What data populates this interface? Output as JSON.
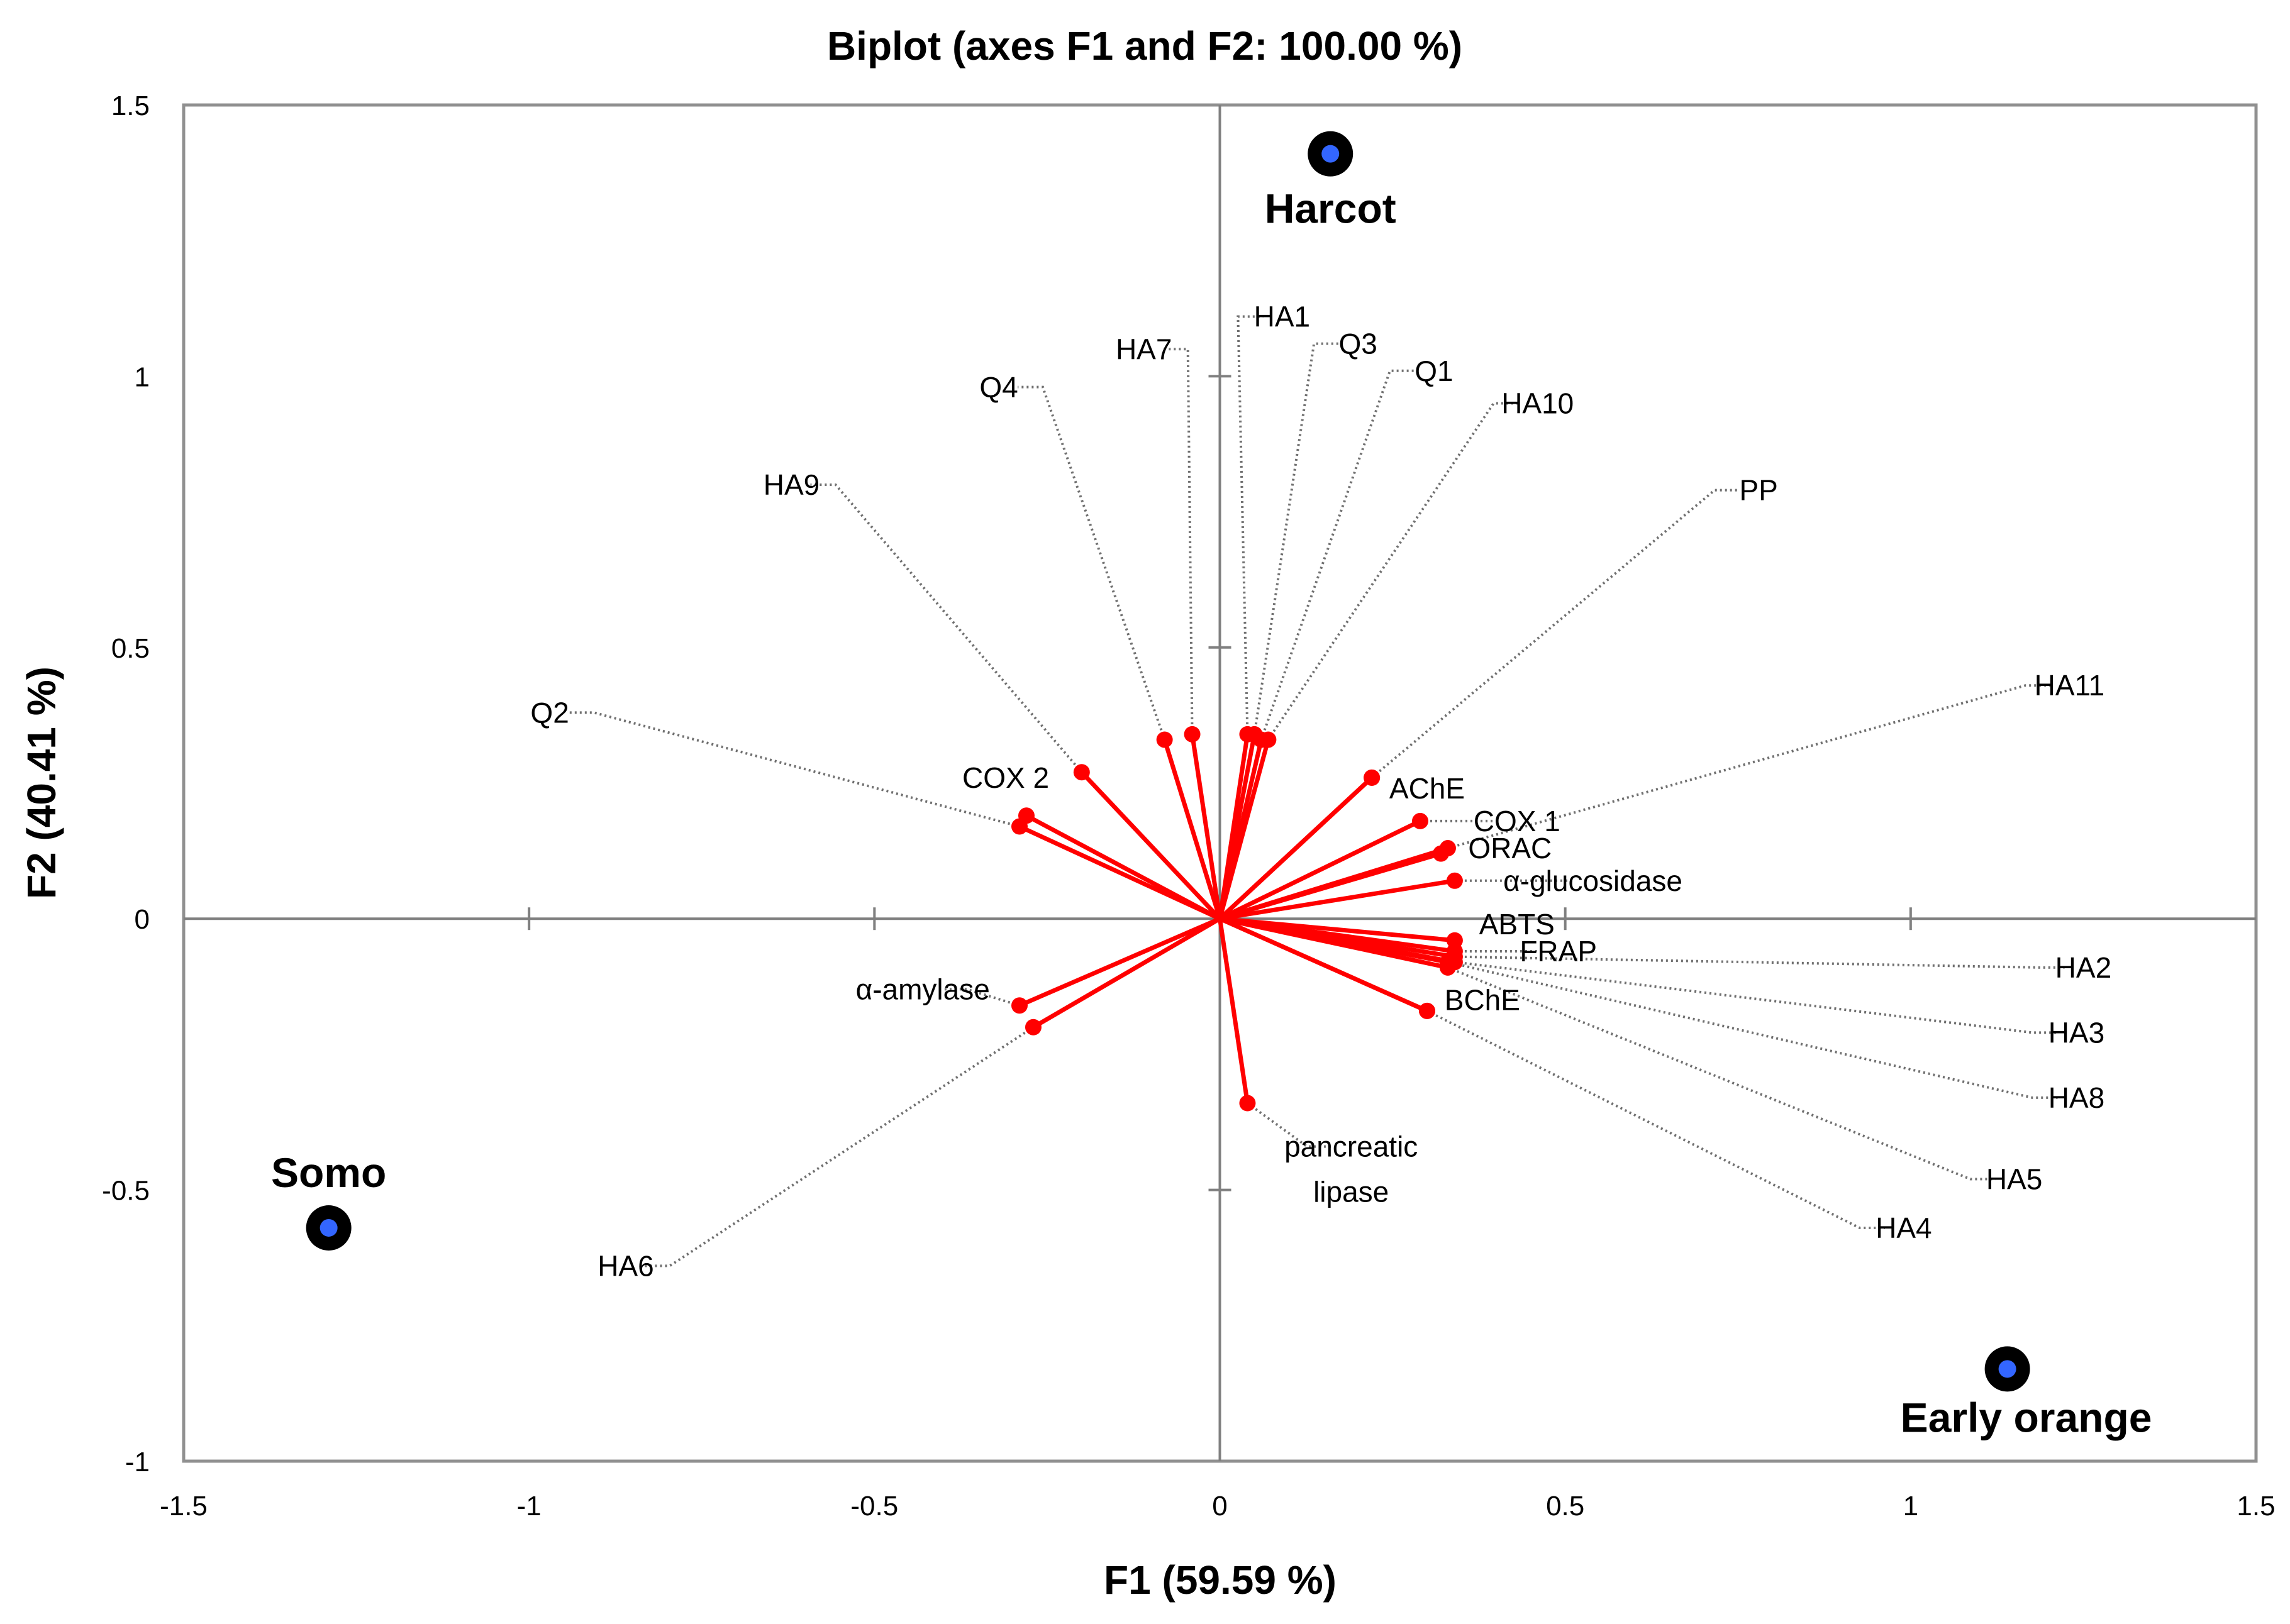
{
  "chart_data": {
    "type": "scatter",
    "subtype": "biplot",
    "title": "Biplot (axes F1 and F2: 100.00 %)",
    "xlabel": "F1 (59.59 %)",
    "ylabel": "F2 (40.41 %)",
    "xlim": [
      -1.5,
      1.5
    ],
    "ylim": [
      -1,
      1.5
    ],
    "xticks": [
      -1.5,
      -1,
      -0.5,
      0,
      0.5,
      1,
      1.5
    ],
    "yticks": [
      -1,
      -0.5,
      0,
      0.5,
      1,
      1.5
    ],
    "xtick_labels": [
      "-1.5",
      "-1",
      "-0.5",
      "0",
      "0.5",
      "1",
      "1.5"
    ],
    "ytick_labels": [
      "-1",
      "-0.5",
      "0",
      "0.5",
      "1",
      "1.5"
    ],
    "colors": {
      "vector": "#ff0000",
      "leader": "#707070",
      "observation": "#000000",
      "observation_center": "#3366ff",
      "axis": "#808080"
    },
    "variables": [
      {
        "name": "HA1",
        "x": 0.04,
        "y": 0.34,
        "label_x": 0.09,
        "label_y": 1.11
      },
      {
        "name": "Q3",
        "x": 0.05,
        "y": 0.34,
        "label_x": 0.2,
        "label_y": 1.06
      },
      {
        "name": "Q1",
        "x": 0.06,
        "y": 0.33,
        "label_x": 0.31,
        "label_y": 1.01
      },
      {
        "name": "HA10",
        "x": 0.07,
        "y": 0.33,
        "label_x": 0.46,
        "label_y": 0.95
      },
      {
        "name": "HA7",
        "x": -0.04,
        "y": 0.34,
        "label_x": -0.11,
        "label_y": 1.05
      },
      {
        "name": "Q4",
        "x": -0.08,
        "y": 0.33,
        "label_x": -0.32,
        "label_y": 0.98
      },
      {
        "name": "HA9",
        "x": -0.2,
        "y": 0.27,
        "label_x": -0.62,
        "label_y": 0.8
      },
      {
        "name": "Q2",
        "x": -0.29,
        "y": 0.17,
        "label_x": -0.97,
        "label_y": 0.38
      },
      {
        "name": "COX 2",
        "x": -0.28,
        "y": 0.19,
        "label_x": -0.31,
        "label_y": 0.26
      },
      {
        "name": "PP",
        "x": 0.22,
        "y": 0.26,
        "label_x": 0.78,
        "label_y": 0.79
      },
      {
        "name": "HA11",
        "x": 0.33,
        "y": 0.13,
        "label_x": 1.23,
        "label_y": 0.43
      },
      {
        "name": "AChE",
        "x": 0.22,
        "y": 0.26,
        "label_x": 0.3,
        "label_y": 0.24
      },
      {
        "name": "COX 1",
        "x": 0.29,
        "y": 0.18,
        "label_x": 0.43,
        "label_y": 0.18
      },
      {
        "name": "ORAC",
        "x": 0.32,
        "y": 0.12,
        "label_x": 0.42,
        "label_y": 0.13
      },
      {
        "name": "α-glucosidase",
        "x": 0.34,
        "y": 0.07,
        "label_x": 0.54,
        "label_y": 0.07
      },
      {
        "name": "ABTS",
        "x": 0.34,
        "y": -0.04,
        "label_x": 0.43,
        "label_y": -0.01
      },
      {
        "name": "FRAP",
        "x": 0.34,
        "y": -0.06,
        "label_x": 0.49,
        "label_y": -0.06
      },
      {
        "name": "HA2",
        "x": 0.34,
        "y": -0.07,
        "label_x": 1.25,
        "label_y": -0.09
      },
      {
        "name": "HA3",
        "x": 0.34,
        "y": -0.08,
        "label_x": 1.24,
        "label_y": -0.21
      },
      {
        "name": "HA8",
        "x": 0.33,
        "y": -0.08,
        "label_x": 1.24,
        "label_y": -0.33
      },
      {
        "name": "HA5",
        "x": 0.33,
        "y": -0.09,
        "label_x": 1.15,
        "label_y": -0.48
      },
      {
        "name": "BChE",
        "x": 0.3,
        "y": -0.17,
        "label_x": 0.38,
        "label_y": -0.15
      },
      {
        "name": "HA4",
        "x": 0.3,
        "y": -0.17,
        "label_x": 0.99,
        "label_y": -0.57
      },
      {
        "name": "α-amylase",
        "x": -0.29,
        "y": -0.16,
        "label_x": -0.43,
        "label_y": -0.13
      },
      {
        "name": "HA6",
        "x": -0.27,
        "y": -0.2,
        "label_x": -0.86,
        "label_y": -0.64
      },
      {
        "name": "pancreatic lipase",
        "x": 0.04,
        "y": -0.34,
        "label_x": 0.19,
        "label_y": -0.42
      }
    ],
    "observations": [
      {
        "name": "Harcot",
        "x": 0.16,
        "y": 1.41
      },
      {
        "name": "Somo",
        "x": -1.29,
        "y": -0.57
      },
      {
        "name": "Early orange",
        "x": 1.14,
        "y": -0.83
      }
    ]
  }
}
